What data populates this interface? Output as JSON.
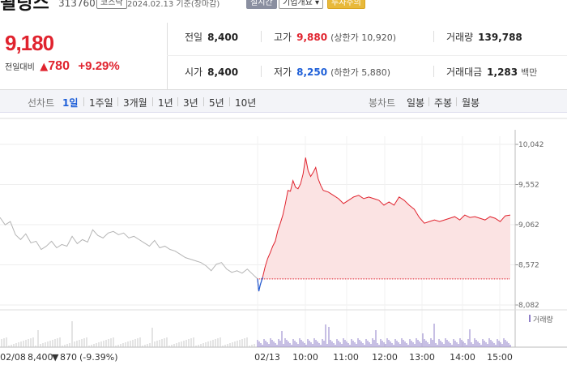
{
  "header": {
    "name_fragment": "될링스",
    "code": "313760",
    "market": "코스닥",
    "date_label": "2024.02.13 기준(장마감)",
    "realtime_badge": "실시간",
    "company_button": "기업개요 ▾",
    "warning_badge": "투자주의"
  },
  "price": {
    "current": "9,180",
    "change_label": "전일대비",
    "change_icon": "triangle-up-icon",
    "change_amount": "780",
    "change_pct": "+9.29%"
  },
  "quote": {
    "prev_close": {
      "label": "전일",
      "value": "8,400"
    },
    "open": {
      "label": "시가",
      "value": "8,400"
    },
    "high": {
      "label": "고가",
      "value": "9,880",
      "sub": "(상한가 10,920)"
    },
    "low": {
      "label": "저가",
      "value": "8,250",
      "sub": "(하한가 5,880)"
    },
    "volume": {
      "label": "거래량",
      "value": "139,788"
    },
    "amount": {
      "label": "거래대금",
      "value": "1,283",
      "unit": "백만"
    }
  },
  "toolbar": {
    "line_label": "선차트",
    "periods": [
      "1일",
      "1주일",
      "3개월",
      "1년",
      "3년",
      "5년",
      "10년"
    ],
    "active_period": "1일",
    "candle_label": "봉차트",
    "candles": [
      "일봉",
      "주봉",
      "월봉"
    ]
  },
  "colors": {
    "up": "#e0232e",
    "down": "#1e5fd8",
    "prev": "#b5b5b5",
    "fill": "#fbe3e3",
    "volume": "#8f7fc8"
  },
  "chart_data": {
    "type": "line",
    "y_ticks": [
      "10,042",
      "9,552",
      "9,062",
      "8,572",
      "8,082"
    ],
    "ylim": [
      8082,
      10042
    ],
    "prev_close": 8400,
    "x_labels": [
      "02/08",
      "02/13",
      "10:00",
      "11:00",
      "12:00",
      "13:00",
      "14:00",
      "15:00"
    ],
    "volume_label": "거래량",
    "prev_day_note": {
      "date": "02/08",
      "price": "8,400",
      "icon": "triangle-down-icon",
      "change": "870",
      "pct": "(-9.39%)"
    },
    "prev_series": [
      [
        0.0,
        9150
      ],
      [
        0.02,
        9060
      ],
      [
        0.04,
        9100
      ],
      [
        0.06,
        8940
      ],
      [
        0.08,
        8880
      ],
      [
        0.1,
        8950
      ],
      [
        0.12,
        8840
      ],
      [
        0.14,
        8860
      ],
      [
        0.16,
        8760
      ],
      [
        0.18,
        8800
      ],
      [
        0.2,
        8860
      ],
      [
        0.22,
        8780
      ],
      [
        0.24,
        8820
      ],
      [
        0.26,
        8800
      ],
      [
        0.28,
        8920
      ],
      [
        0.3,
        8830
      ],
      [
        0.32,
        8880
      ],
      [
        0.34,
        8850
      ],
      [
        0.36,
        9000
      ],
      [
        0.38,
        8930
      ],
      [
        0.4,
        8900
      ],
      [
        0.42,
        8960
      ],
      [
        0.44,
        8980
      ],
      [
        0.46,
        8940
      ],
      [
        0.48,
        8960
      ],
      [
        0.5,
        8900
      ],
      [
        0.52,
        8920
      ],
      [
        0.54,
        8880
      ],
      [
        0.56,
        8840
      ],
      [
        0.58,
        8800
      ],
      [
        0.6,
        8870
      ],
      [
        0.62,
        8780
      ],
      [
        0.64,
        8800
      ],
      [
        0.66,
        8760
      ],
      [
        0.68,
        8740
      ],
      [
        0.7,
        8700
      ],
      [
        0.72,
        8660
      ],
      [
        0.74,
        8640
      ],
      [
        0.76,
        8620
      ],
      [
        0.78,
        8600
      ],
      [
        0.8,
        8560
      ],
      [
        0.82,
        8500
      ],
      [
        0.84,
        8580
      ],
      [
        0.86,
        8600
      ],
      [
        0.88,
        8520
      ],
      [
        0.9,
        8480
      ],
      [
        0.92,
        8500
      ],
      [
        0.94,
        8470
      ],
      [
        0.96,
        8520
      ],
      [
        0.98,
        8460
      ],
      [
        1.0,
        8400
      ]
    ],
    "today_series": [
      [
        0.0,
        8400
      ],
      [
        0.005,
        8250
      ],
      [
        0.01,
        8320
      ],
      [
        0.02,
        8420
      ],
      [
        0.03,
        8550
      ],
      [
        0.04,
        8650
      ],
      [
        0.05,
        8720
      ],
      [
        0.06,
        8800
      ],
      [
        0.07,
        8860
      ],
      [
        0.08,
        8990
      ],
      [
        0.09,
        9080
      ],
      [
        0.1,
        9180
      ],
      [
        0.11,
        9320
      ],
      [
        0.12,
        9480
      ],
      [
        0.13,
        9470
      ],
      [
        0.14,
        9600
      ],
      [
        0.15,
        9520
      ],
      [
        0.16,
        9500
      ],
      [
        0.17,
        9560
      ],
      [
        0.18,
        9680
      ],
      [
        0.19,
        9880
      ],
      [
        0.2,
        9720
      ],
      [
        0.21,
        9650
      ],
      [
        0.22,
        9700
      ],
      [
        0.23,
        9760
      ],
      [
        0.24,
        9620
      ],
      [
        0.25,
        9540
      ],
      [
        0.26,
        9480
      ],
      [
        0.28,
        9460
      ],
      [
        0.3,
        9420
      ],
      [
        0.32,
        9380
      ],
      [
        0.34,
        9320
      ],
      [
        0.36,
        9360
      ],
      [
        0.38,
        9400
      ],
      [
        0.4,
        9420
      ],
      [
        0.42,
        9380
      ],
      [
        0.44,
        9400
      ],
      [
        0.46,
        9380
      ],
      [
        0.48,
        9360
      ],
      [
        0.5,
        9300
      ],
      [
        0.52,
        9340
      ],
      [
        0.54,
        9300
      ],
      [
        0.56,
        9400
      ],
      [
        0.58,
        9360
      ],
      [
        0.6,
        9300
      ],
      [
        0.62,
        9250
      ],
      [
        0.64,
        9150
      ],
      [
        0.66,
        9080
      ],
      [
        0.68,
        9100
      ],
      [
        0.7,
        9120
      ],
      [
        0.72,
        9100
      ],
      [
        0.74,
        9120
      ],
      [
        0.76,
        9140
      ],
      [
        0.78,
        9160
      ],
      [
        0.8,
        9120
      ],
      [
        0.82,
        9180
      ],
      [
        0.84,
        9150
      ],
      [
        0.86,
        9160
      ],
      [
        0.88,
        9140
      ],
      [
        0.9,
        9120
      ],
      [
        0.92,
        9160
      ],
      [
        0.94,
        9140
      ],
      [
        0.96,
        9100
      ],
      [
        0.98,
        9170
      ],
      [
        1.0,
        9180
      ]
    ]
  }
}
